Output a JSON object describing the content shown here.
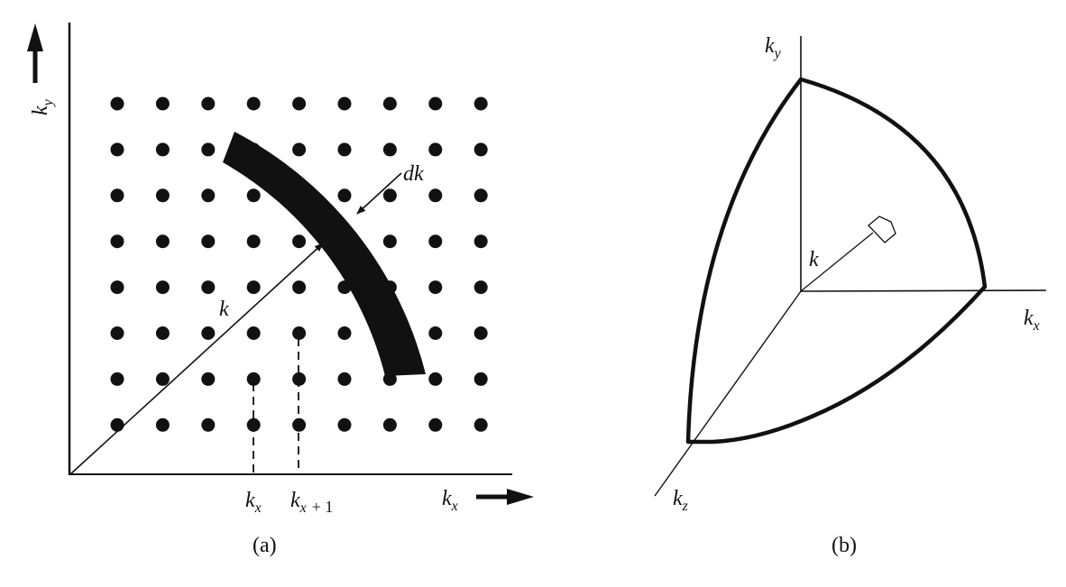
{
  "panel_a": {
    "caption": "(a)",
    "y_axis_label": "k",
    "y_axis_sub": "y",
    "x_axis_label": "k",
    "x_axis_sub": "x",
    "radius_label": "k",
    "shell_label": "dk",
    "tick_1": {
      "main": "k",
      "sub": "x"
    },
    "tick_2": {
      "main": "k",
      "sub": "x",
      "suffix": "+ 1"
    },
    "grid": {
      "columns": 9,
      "rows": 8
    }
  },
  "panel_b": {
    "caption": "(b)",
    "ky_label": {
      "main": "k",
      "sub": "y"
    },
    "kx_label": {
      "main": "k",
      "sub": "x"
    },
    "kz_label": {
      "main": "k",
      "sub": "z"
    },
    "radius_label": "k"
  },
  "colors": {
    "ink": "#111111",
    "background": "#ffffff"
  }
}
